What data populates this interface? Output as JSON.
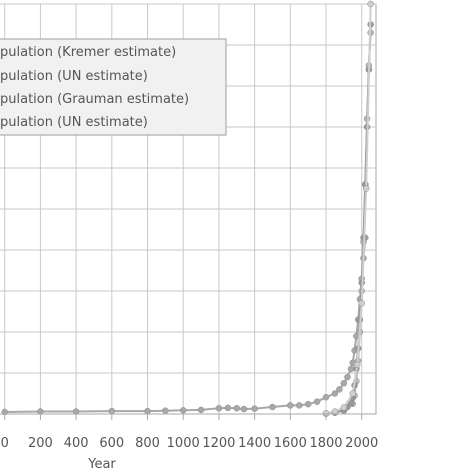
{
  "chart_data": {
    "type": "line",
    "title": "",
    "xlabel": "Year",
    "ylabel": "",
    "xlim": [
      -60,
      2080
    ],
    "ylim": [
      0,
      100
    ],
    "grid": true,
    "legend_placement": "top-left",
    "x_ticks": [
      0,
      200,
      400,
      600,
      800,
      1000,
      1200,
      1400,
      1600,
      1800,
      2000
    ],
    "x_tick_labels": [
      "0",
      "200",
      "400",
      "600",
      "800",
      "1000",
      "1200",
      "1400",
      "1600",
      "1800",
      "2000"
    ],
    "y_gridlines": [
      0,
      10,
      20,
      30,
      40,
      50,
      60,
      70,
      80,
      90,
      100
    ],
    "legend": [
      "pulation (Kremer estimate)",
      "pulation (UN estimate)",
      "pulation (Grauman estimate)",
      "pulation (UN estimate)"
    ],
    "series": [
      {
        "color": "#a8a8a8",
        "x": [
          0,
          200,
          400,
          600,
          800,
          900,
          1000,
          1100,
          1200,
          1250,
          1300,
          1340,
          1400,
          1500,
          1600,
          1650,
          1700,
          1750,
          1800,
          1850,
          1875,
          1900,
          1920,
          1940,
          1950,
          1960,
          1970,
          1980,
          1990,
          2000,
          2010,
          2020
        ],
        "y": [
          0.5,
          0.6,
          0.6,
          0.7,
          0.7,
          0.8,
          0.9,
          1.0,
          1.4,
          1.5,
          1.4,
          1.2,
          1.3,
          1.7,
          2.1,
          2.1,
          2.4,
          3.0,
          4.1,
          5.0,
          6.0,
          7.5,
          9.0,
          11.0,
          12.5,
          15.5,
          19.0,
          23.0,
          28.0,
          33.0,
          38.0,
          43.0
        ]
      },
      {
        "color": "#b9b9b9",
        "x": [
          1800,
          1850,
          1900,
          1950,
          1960,
          1970,
          1980,
          1990,
          2000,
          2010,
          2020,
          2030,
          2040,
          2050
        ],
        "y": [
          0.1,
          0.3,
          0.8,
          2.5,
          4.5,
          8.0,
          13.0,
          20.0,
          30.0,
          42.0,
          56.0,
          72.0,
          85.0,
          93.0
        ]
      },
      {
        "color": "#979797",
        "x": [
          1800,
          1850,
          1900,
          1920,
          1940,
          1950,
          1960,
          1970,
          1980,
          1990,
          2000,
          2010,
          2020,
          2030,
          2040,
          2050
        ],
        "y": [
          0.1,
          0.4,
          1.0,
          1.7,
          2.6,
          4.0,
          7.0,
          11.0,
          16.0,
          23.0,
          32.0,
          43.0,
          56.0,
          70.0,
          84.0,
          95.0
        ]
      },
      {
        "color": "#cfcfcf",
        "x": [
          1800,
          1850,
          1900,
          1950,
          1975,
          2000,
          2025,
          2050
        ],
        "y": [
          0.2,
          0.6,
          1.6,
          5.0,
          12.0,
          27.0,
          55.0,
          100.0
        ]
      }
    ]
  }
}
